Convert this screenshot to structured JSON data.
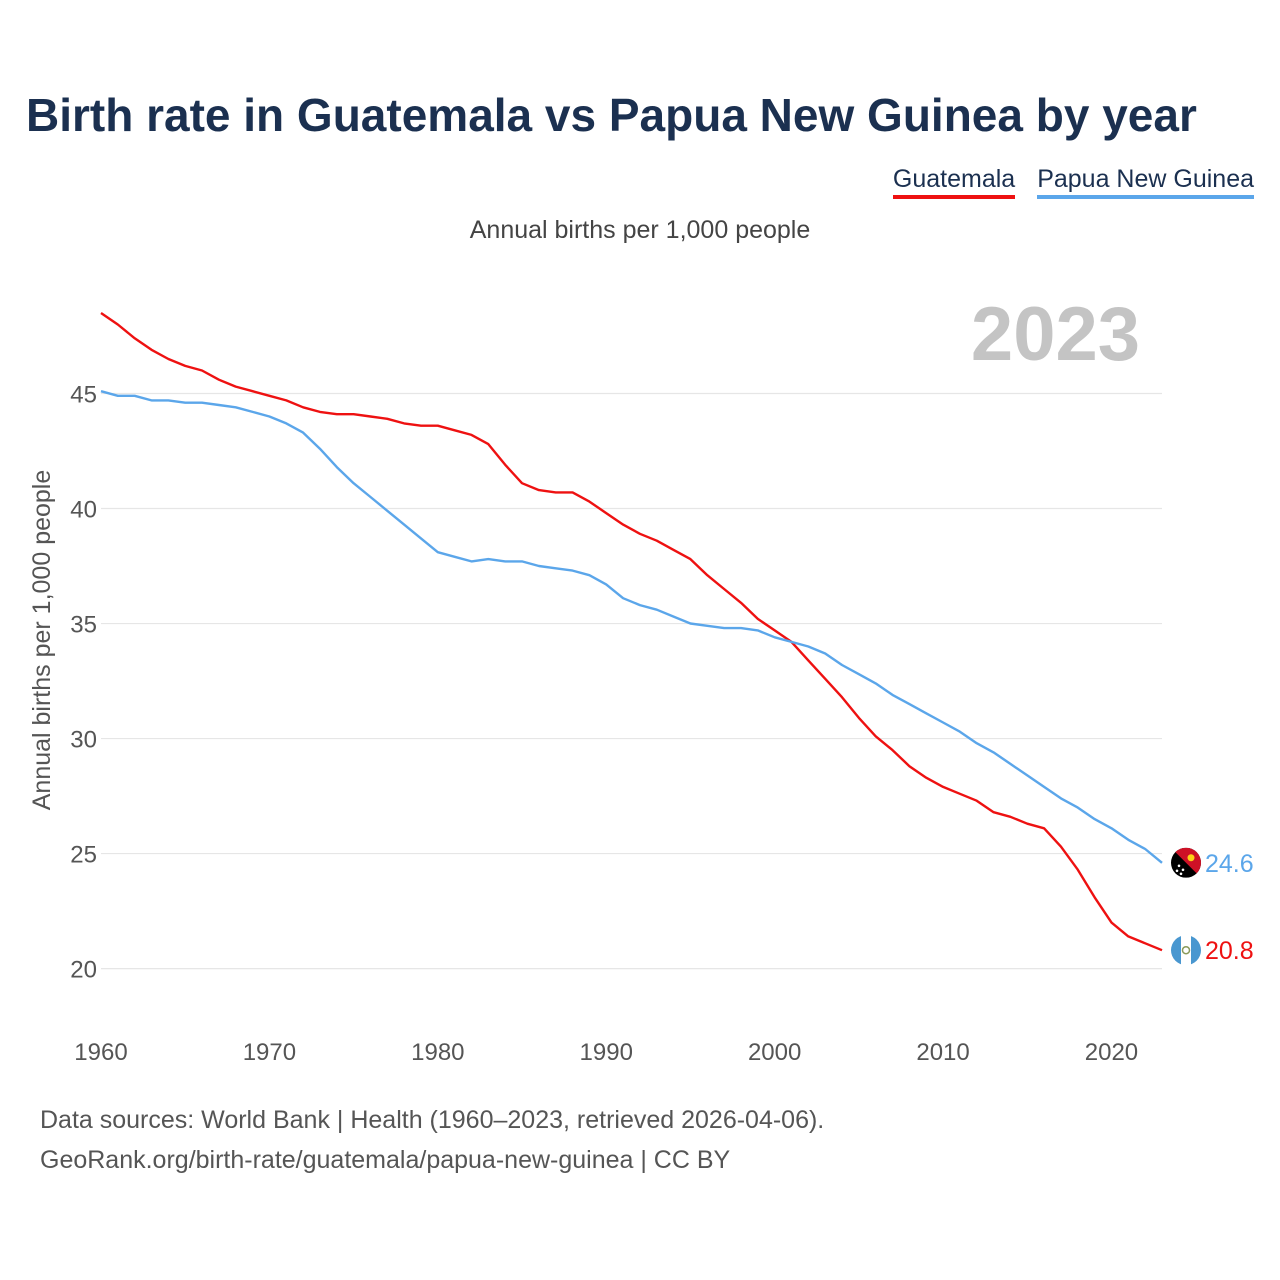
{
  "title": "Birth rate in Guatemala vs Papua New Guinea by year",
  "subtitle": "Annual births per 1,000 people",
  "sources": {
    "line1": "Data sources: World Bank | Health (1960–2023, retrieved 2026-04-06).",
    "line2": "GeoRank.org/birth-rate/guatemala/papua-new-guinea | CC BY"
  },
  "chart_data": {
    "type": "line",
    "title": "Birth rate in Guatemala vs Papua New Guinea by year",
    "ylabel": "Annual births per 1,000 people",
    "xlabel": "",
    "year_watermark": "2023",
    "xlim": [
      1960,
      2023
    ],
    "ylim": [
      18.2,
      49.5
    ],
    "x_ticks": [
      1960,
      1970,
      1980,
      1990,
      2000,
      2010,
      2020
    ],
    "y_ticks": [
      20,
      25,
      30,
      35,
      40,
      45
    ],
    "grid": true,
    "legend_position": "top-right",
    "x": [
      1960,
      1961,
      1962,
      1963,
      1964,
      1965,
      1966,
      1967,
      1968,
      1969,
      1970,
      1971,
      1972,
      1973,
      1974,
      1975,
      1976,
      1977,
      1978,
      1979,
      1980,
      1981,
      1982,
      1983,
      1984,
      1985,
      1986,
      1987,
      1988,
      1989,
      1990,
      1991,
      1992,
      1993,
      1994,
      1995,
      1996,
      1997,
      1998,
      1999,
      2000,
      2001,
      2002,
      2003,
      2004,
      2005,
      2006,
      2007,
      2008,
      2009,
      2010,
      2011,
      2012,
      2013,
      2014,
      2015,
      2016,
      2017,
      2018,
      2019,
      2020,
      2021,
      2022,
      2023
    ],
    "series": [
      {
        "name": "Guatemala",
        "color": "#ee1111",
        "end_label": "20.8",
        "flag": "guatemala-flag-icon",
        "values": [
          48.5,
          48.0,
          47.4,
          46.9,
          46.5,
          46.2,
          46.0,
          45.6,
          45.3,
          45.1,
          44.9,
          44.7,
          44.4,
          44.2,
          44.1,
          44.1,
          44.0,
          43.9,
          43.7,
          43.6,
          43.6,
          43.4,
          43.2,
          42.8,
          41.9,
          41.1,
          40.8,
          40.7,
          40.7,
          40.3,
          39.8,
          39.3,
          38.9,
          38.6,
          38.2,
          37.8,
          37.1,
          36.5,
          35.9,
          35.2,
          34.7,
          34.2,
          33.4,
          32.6,
          31.8,
          30.9,
          30.1,
          29.5,
          28.8,
          28.3,
          27.9,
          27.6,
          27.3,
          26.8,
          26.6,
          26.3,
          26.1,
          25.3,
          24.3,
          23.1,
          22.0,
          21.4,
          21.1,
          20.8
        ]
      },
      {
        "name": "Papua New Guinea",
        "color": "#5ba6ea",
        "end_label": "24.6",
        "flag": "papua-new-guinea-flag-icon",
        "values": [
          45.1,
          44.9,
          44.9,
          44.7,
          44.7,
          44.6,
          44.6,
          44.5,
          44.4,
          44.2,
          44.0,
          43.7,
          43.3,
          42.6,
          41.8,
          41.1,
          40.5,
          39.9,
          39.3,
          38.7,
          38.1,
          37.9,
          37.7,
          37.8,
          37.7,
          37.7,
          37.5,
          37.4,
          37.3,
          37.1,
          36.7,
          36.1,
          35.8,
          35.6,
          35.3,
          35.0,
          34.9,
          34.8,
          34.8,
          34.7,
          34.4,
          34.2,
          34.0,
          33.7,
          33.2,
          32.8,
          32.4,
          31.9,
          31.5,
          31.1,
          30.7,
          30.3,
          29.8,
          29.4,
          28.9,
          28.4,
          27.9,
          27.4,
          27.0,
          26.5,
          26.1,
          25.6,
          25.2,
          24.6
        ]
      }
    ]
  }
}
